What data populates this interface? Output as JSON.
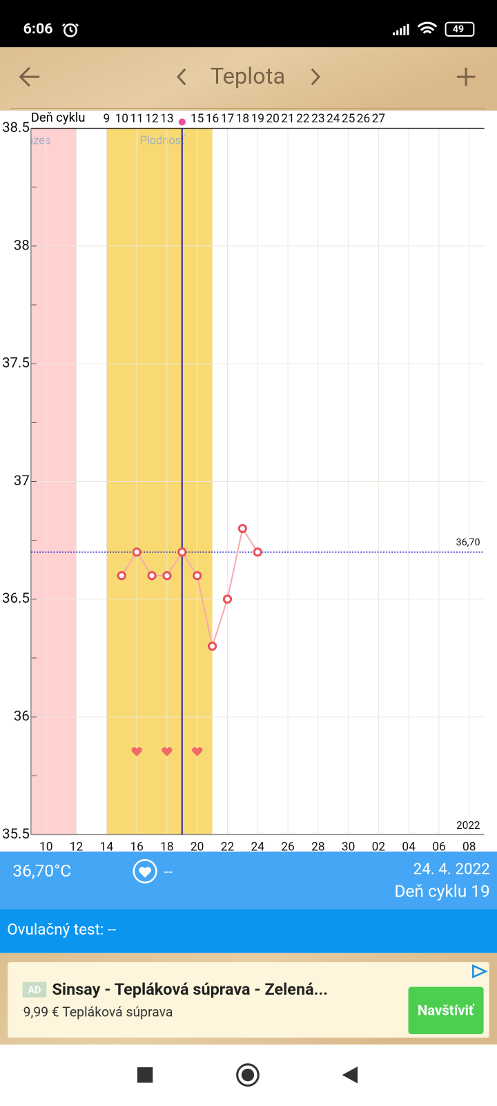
{
  "status_bar": {
    "time": "6:06",
    "battery": "49"
  },
  "toolbar": {
    "title": "Teplota"
  },
  "chart_data": {
    "type": "line",
    "top_axis_label": "Deň cyklu",
    "top_categories": [
      null,
      null,
      null,
      null,
      null,
      "9",
      "10",
      "11",
      "12",
      "13",
      null,
      "15",
      "16",
      "17",
      "18",
      "19",
      "20",
      "21",
      "22",
      "23",
      "24",
      "25",
      "26",
      "27",
      null,
      null,
      null,
      null,
      null,
      null,
      null
    ],
    "categories": [
      null,
      "10",
      null,
      "12",
      null,
      "14",
      null,
      "16",
      null,
      "18",
      null,
      "20",
      null,
      "22",
      null,
      "24",
      null,
      "26",
      null,
      "28",
      null,
      "30",
      null,
      "02",
      null,
      "04",
      null,
      "06",
      null,
      "08",
      null
    ],
    "series": [
      {
        "color": "#e8525c",
        "values": [
          null,
          null,
          null,
          null,
          null,
          null,
          36.6,
          36.7,
          36.6,
          36.6,
          36.7,
          36.6,
          36.3,
          36.5,
          36.8,
          36.7,
          null,
          null,
          null,
          null,
          null,
          null,
          null,
          null,
          null,
          null,
          null,
          null,
          null,
          null,
          null
        ]
      }
    ],
    "hearts": {
      "color": "#f06a6a",
      "values": [
        null,
        null,
        null,
        null,
        null,
        null,
        null,
        35.85,
        null,
        35.85,
        null,
        35.85,
        null,
        null,
        null,
        null,
        null,
        null,
        null,
        null,
        null,
        null,
        null,
        null,
        null,
        null,
        null,
        null,
        null,
        null,
        null
      ]
    },
    "ylim": [
      35.5,
      38.5
    ],
    "yticks": [
      35.5,
      36,
      36.5,
      37,
      37.5,
      38,
      38.5
    ],
    "yminor": [
      35.75,
      36.25,
      36.75,
      37.25,
      37.75,
      38.25
    ],
    "grid": true,
    "reference_line": {
      "value": 36.7,
      "label": "36,70"
    },
    "cursor_x": 10,
    "bands": [
      {
        "label": "Menzes",
        "x": [
          0,
          3
        ],
        "color": "#ffd1d1"
      },
      {
        "label": "Plodnosť",
        "x": [
          5,
          12
        ],
        "color": "#f9da72"
      }
    ],
    "year_label": "2022"
  },
  "info": {
    "temperature": "36,70°C",
    "intercourse": "--",
    "date": "24. 4. 2022",
    "cycle_day": "Deň cyklu 19",
    "ovulation_test": "Ovulačný test: --"
  },
  "ad": {
    "badge": "AD",
    "title": "Sinsay - Tepláková súprava - Zelená...",
    "subtitle": "9,99 € Tepláková súprava",
    "button": "Navštíviť"
  }
}
